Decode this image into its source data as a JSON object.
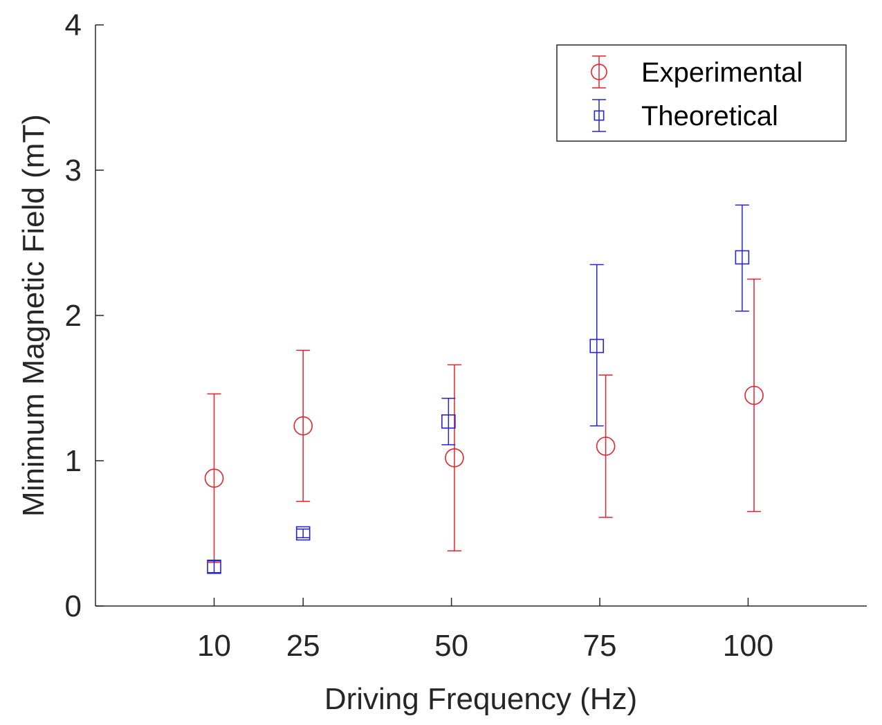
{
  "chart_data": {
    "type": "scatter",
    "title": "",
    "xlabel": "Driving Frequency (Hz)",
    "ylabel": "Minimum Magnetic Field (mT)",
    "xlim": [
      -10,
      120
    ],
    "ylim": [
      0,
      4
    ],
    "xticks": [
      10,
      25,
      50,
      75,
      100
    ],
    "yticks": [
      0,
      1,
      2,
      3,
      4
    ],
    "grid": false,
    "legend_position": "top-right",
    "series": [
      {
        "name": "Experimental",
        "marker": "circle",
        "color": "#e8212b",
        "points": [
          {
            "x": 10,
            "y": 0.88,
            "low": 0.3,
            "high": 1.46
          },
          {
            "x": 25,
            "y": 1.24,
            "low": 0.72,
            "high": 1.76
          },
          {
            "x": 50.5,
            "y": 1.02,
            "low": 0.38,
            "high": 1.66
          },
          {
            "x": 76,
            "y": 1.1,
            "low": 0.61,
            "high": 1.59
          },
          {
            "x": 101,
            "y": 1.45,
            "low": 0.65,
            "high": 2.25
          }
        ]
      },
      {
        "name": "Theoretical",
        "marker": "square",
        "color": "#2323d9",
        "points": [
          {
            "x": 10,
            "y": 0.27,
            "low": 0.23,
            "high": 0.31
          },
          {
            "x": 25,
            "y": 0.5,
            "low": 0.47,
            "high": 0.53
          },
          {
            "x": 49.5,
            "y": 1.27,
            "low": 1.11,
            "high": 1.43
          },
          {
            "x": 74.5,
            "y": 1.79,
            "low": 1.24,
            "high": 2.35
          },
          {
            "x": 99,
            "y": 2.4,
            "low": 2.03,
            "high": 2.76
          }
        ]
      }
    ]
  }
}
